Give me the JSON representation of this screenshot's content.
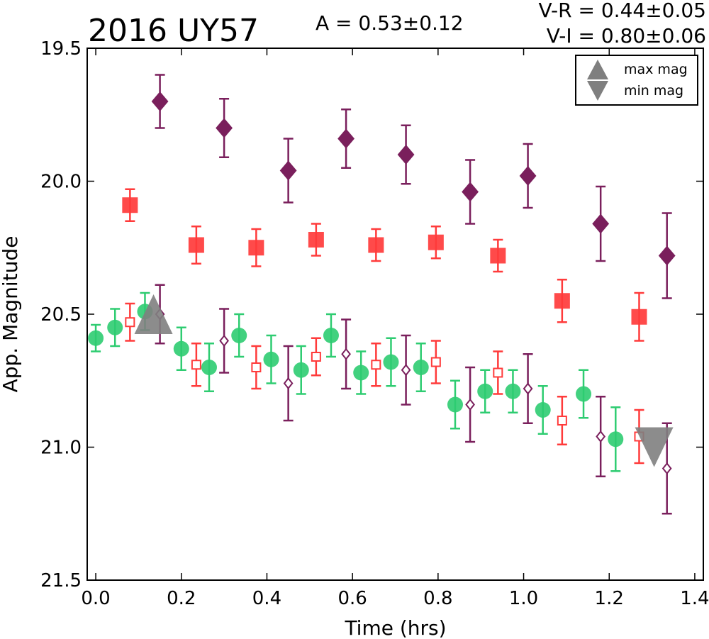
{
  "chart_data": {
    "type": "scatter",
    "title": "2016 UY57",
    "amplitude_text": "A  = 0.53±0.12",
    "color_text_1": "V-R = 0.44±0.05",
    "color_text_2": "V-I  = 0.80±0.06",
    "xlabel": "Time (hrs)",
    "ylabel": "App. Magnitude",
    "xlim": [
      -0.02,
      1.42
    ],
    "ylim": [
      21.5,
      19.5
    ],
    "y_inverted": true,
    "grid": false,
    "x_ticks": [
      0.0,
      0.2,
      0.4,
      0.6,
      0.8,
      1.0,
      1.2,
      1.4
    ],
    "x_tick_labels": [
      "0.0",
      "0.2",
      "0.4",
      "0.6",
      "0.8",
      "1.0",
      "1.2",
      "1.4"
    ],
    "y_ticks": [
      19.5,
      20.0,
      20.5,
      21.0,
      21.5
    ],
    "y_tick_labels": [
      "19.5",
      "20.0",
      "20.5",
      "21.0",
      "21.5"
    ],
    "legend_position": "top-right",
    "legend": [
      {
        "label": "max mag",
        "marker": "triangle-up"
      },
      {
        "label": "min mag",
        "marker": "triangle-down"
      }
    ],
    "series": [
      {
        "marker": "diamond-filled",
        "color": "#7a1f5c",
        "points": [
          {
            "x": 0.15,
            "y": 19.7,
            "err": 0.1
          },
          {
            "x": 0.3,
            "y": 19.8,
            "err": 0.11
          },
          {
            "x": 0.45,
            "y": 19.96,
            "err": 0.12
          },
          {
            "x": 0.585,
            "y": 19.84,
            "err": 0.11
          },
          {
            "x": 0.725,
            "y": 19.9,
            "err": 0.11
          },
          {
            "x": 0.875,
            "y": 20.04,
            "err": 0.12
          },
          {
            "x": 1.01,
            "y": 19.98,
            "err": 0.12
          },
          {
            "x": 1.18,
            "y": 20.16,
            "err": 0.14
          },
          {
            "x": 1.335,
            "y": 20.28,
            "err": 0.16
          }
        ]
      },
      {
        "marker": "square-filled",
        "color": "#ff3b3b",
        "points": [
          {
            "x": 0.08,
            "y": 20.09,
            "err": 0.06
          },
          {
            "x": 0.235,
            "y": 20.24,
            "err": 0.07
          },
          {
            "x": 0.375,
            "y": 20.25,
            "err": 0.07
          },
          {
            "x": 0.515,
            "y": 20.22,
            "err": 0.06
          },
          {
            "x": 0.655,
            "y": 20.24,
            "err": 0.06
          },
          {
            "x": 0.795,
            "y": 20.23,
            "err": 0.06
          },
          {
            "x": 0.94,
            "y": 20.28,
            "err": 0.06
          },
          {
            "x": 1.09,
            "y": 20.45,
            "err": 0.08
          },
          {
            "x": 1.27,
            "y": 20.51,
            "err": 0.09
          }
        ]
      },
      {
        "marker": "circle-filled",
        "color": "#2ecc71",
        "points": [
          {
            "x": 0.0,
            "y": 20.59,
            "err": 0.05
          },
          {
            "x": 0.045,
            "y": 20.55,
            "err": 0.07
          },
          {
            "x": 0.115,
            "y": 20.49,
            "err": 0.07
          },
          {
            "x": 0.2,
            "y": 20.63,
            "err": 0.08
          },
          {
            "x": 0.265,
            "y": 20.7,
            "err": 0.09
          },
          {
            "x": 0.335,
            "y": 20.58,
            "err": 0.08
          },
          {
            "x": 0.41,
            "y": 20.67,
            "err": 0.09
          },
          {
            "x": 0.48,
            "y": 20.71,
            "err": 0.09
          },
          {
            "x": 0.55,
            "y": 20.58,
            "err": 0.08
          },
          {
            "x": 0.62,
            "y": 20.72,
            "err": 0.08
          },
          {
            "x": 0.69,
            "y": 20.68,
            "err": 0.09
          },
          {
            "x": 0.76,
            "y": 20.7,
            "err": 0.09
          },
          {
            "x": 0.84,
            "y": 20.84,
            "err": 0.09
          },
          {
            "x": 0.91,
            "y": 20.79,
            "err": 0.08
          },
          {
            "x": 0.975,
            "y": 20.79,
            "err": 0.08
          },
          {
            "x": 1.045,
            "y": 20.86,
            "err": 0.09
          },
          {
            "x": 1.14,
            "y": 20.8,
            "err": 0.09
          },
          {
            "x": 1.215,
            "y": 20.97,
            "err": 0.12
          }
        ]
      },
      {
        "marker": "square-open",
        "color": "#ff3b3b",
        "points": [
          {
            "x": 0.08,
            "y": 20.53,
            "err": 0.07
          },
          {
            "x": 0.235,
            "y": 20.69,
            "err": 0.08
          },
          {
            "x": 0.375,
            "y": 20.7,
            "err": 0.08
          },
          {
            "x": 0.515,
            "y": 20.66,
            "err": 0.07
          },
          {
            "x": 0.655,
            "y": 20.69,
            "err": 0.08
          },
          {
            "x": 0.795,
            "y": 20.68,
            "err": 0.08
          },
          {
            "x": 0.94,
            "y": 20.72,
            "err": 0.08
          },
          {
            "x": 1.09,
            "y": 20.9,
            "err": 0.09
          },
          {
            "x": 1.27,
            "y": 20.96,
            "err": 0.1
          }
        ]
      },
      {
        "marker": "diamond-open",
        "color": "#7a1f5c",
        "points": [
          {
            "x": 0.15,
            "y": 20.5,
            "err": 0.11
          },
          {
            "x": 0.3,
            "y": 20.6,
            "err": 0.12
          },
          {
            "x": 0.45,
            "y": 20.76,
            "err": 0.14
          },
          {
            "x": 0.585,
            "y": 20.65,
            "err": 0.13
          },
          {
            "x": 0.725,
            "y": 20.71,
            "err": 0.13
          },
          {
            "x": 0.875,
            "y": 20.84,
            "err": 0.14
          },
          {
            "x": 1.01,
            "y": 20.78,
            "err": 0.13
          },
          {
            "x": 1.18,
            "y": 20.96,
            "err": 0.15
          },
          {
            "x": 1.335,
            "y": 21.08,
            "err": 0.17
          }
        ]
      },
      {
        "marker": "triangle-up",
        "color": "#7f7f7f",
        "points": [
          {
            "x": 0.135,
            "y": 20.5
          }
        ]
      },
      {
        "marker": "triangle-down",
        "color": "#7f7f7f",
        "points": [
          {
            "x": 1.305,
            "y": 21.0
          }
        ]
      }
    ]
  }
}
